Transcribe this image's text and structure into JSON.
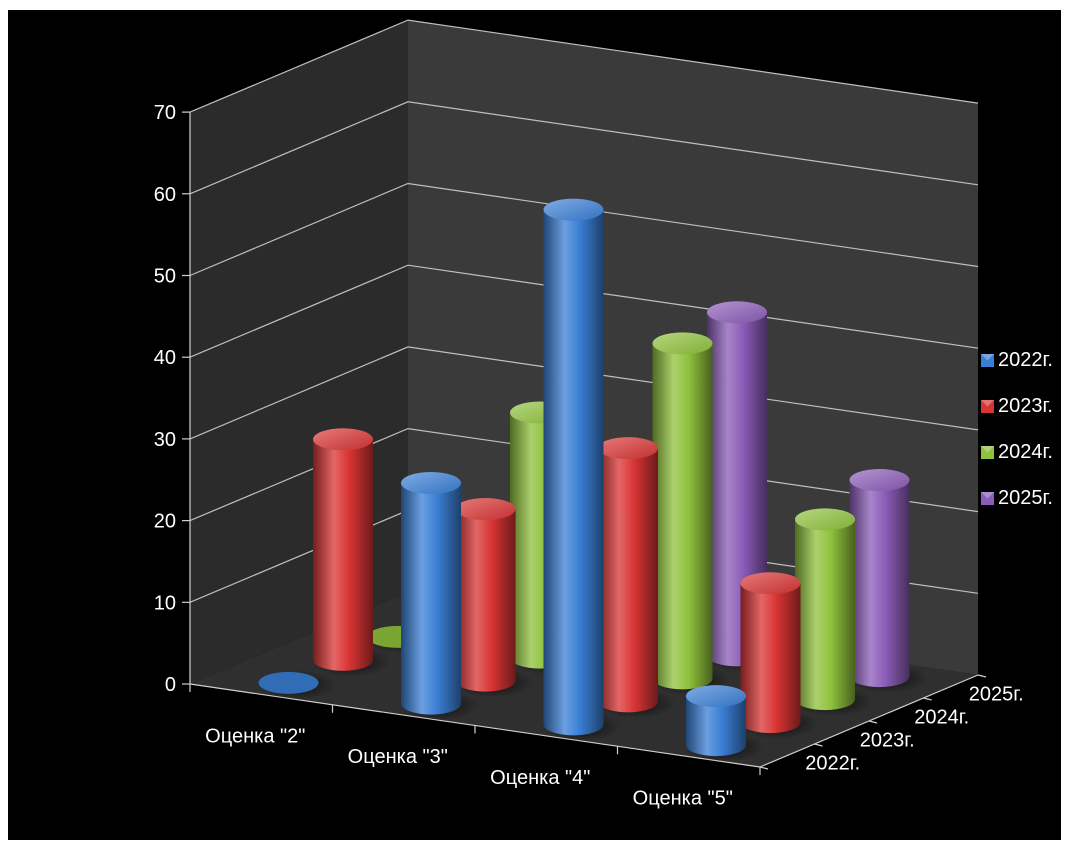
{
  "colors": {
    "background": "#000000",
    "wall": "#3a3a3a",
    "floor": "#2f2f2f",
    "grid": "#bfbfbf",
    "axis": "#d0d0d0"
  },
  "chart_data": {
    "type": "bar",
    "style": "3d-cylinder",
    "title": "",
    "categories": [
      "Оценка \"2\"",
      "Оценка \"3\"",
      "Оценка \"4\"",
      "Оценка \"5\""
    ],
    "depth_labels": [
      "2022г.",
      "2023г.",
      "2024г.",
      "2025г."
    ],
    "series": [
      {
        "name": "2022г.",
        "color": "#3a7fd6",
        "values": [
          0,
          27,
          63,
          6
        ]
      },
      {
        "name": "2023г.",
        "color": "#d93434",
        "values": [
          27,
          21,
          31,
          17
        ]
      },
      {
        "name": "2024г.",
        "color": "#8fc23c",
        "values": [
          0,
          30,
          41,
          22
        ]
      },
      {
        "name": "2025г.",
        "color": "#8b5cb8",
        "values": [
          0,
          10,
          42,
          24
        ]
      }
    ],
    "y_ticks": [
      "0",
      "10",
      "20",
      "30",
      "40",
      "50",
      "60",
      "70"
    ],
    "ylim": [
      0,
      70
    ],
    "grid": true,
    "legend_position": "right"
  }
}
